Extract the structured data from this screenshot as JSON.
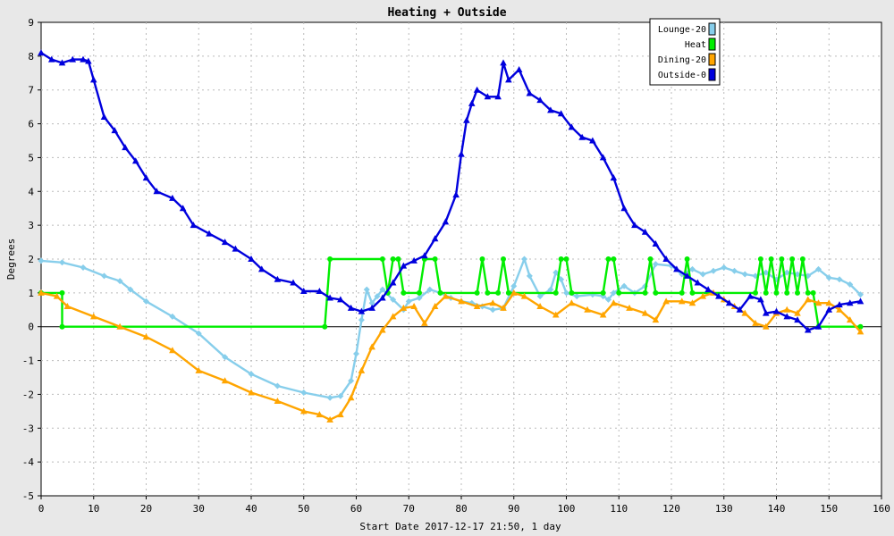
{
  "chart_data": {
    "type": "line",
    "title": "Heating + Outside",
    "xlabel": "Start Date 2017-12-17 21:50, 1 day",
    "ylabel": "Degrees",
    "xlim": [
      0,
      160
    ],
    "ylim": [
      -5,
      9
    ],
    "x_ticks": [
      0,
      10,
      20,
      30,
      40,
      50,
      60,
      70,
      80,
      90,
      100,
      110,
      120,
      130,
      140,
      150,
      160
    ],
    "y_ticks": [
      -5,
      -4,
      -3,
      -2,
      -1,
      0,
      1,
      2,
      3,
      4,
      5,
      6,
      7,
      8,
      9
    ],
    "grid": true,
    "legend_position": "top-right",
    "series": [
      {
        "name": "Lounge-20",
        "color": "#87ceeb",
        "marker": "diamond",
        "points": [
          [
            0,
            1.95
          ],
          [
            4,
            1.9
          ],
          [
            8,
            1.75
          ],
          [
            12,
            1.5
          ],
          [
            15,
            1.35
          ],
          [
            17,
            1.1
          ],
          [
            20,
            0.75
          ],
          [
            25,
            0.3
          ],
          [
            30,
            -0.2
          ],
          [
            35,
            -0.9
          ],
          [
            40,
            -1.4
          ],
          [
            45,
            -1.75
          ],
          [
            50,
            -1.95
          ],
          [
            55,
            -2.1
          ],
          [
            57,
            -2.05
          ],
          [
            59,
            -1.6
          ],
          [
            60,
            -0.8
          ],
          [
            61,
            0.2
          ],
          [
            62,
            1.1
          ],
          [
            63,
            0.7
          ],
          [
            64,
            0.9
          ],
          [
            65,
            1.1
          ],
          [
            67,
            0.8
          ],
          [
            69,
            0.5
          ],
          [
            70,
            0.75
          ],
          [
            72,
            0.85
          ],
          [
            74,
            1.1
          ],
          [
            76,
            1.0
          ],
          [
            78,
            0.85
          ],
          [
            80,
            0.75
          ],
          [
            82,
            0.7
          ],
          [
            84,
            0.6
          ],
          [
            86,
            0.5
          ],
          [
            88,
            0.55
          ],
          [
            90,
            1.2
          ],
          [
            92,
            2.0
          ],
          [
            93,
            1.5
          ],
          [
            95,
            0.9
          ],
          [
            97,
            1.1
          ],
          [
            98,
            1.6
          ],
          [
            99,
            1.4
          ],
          [
            100,
            1.0
          ],
          [
            102,
            0.9
          ],
          [
            105,
            0.95
          ],
          [
            107,
            0.9
          ],
          [
            108,
            0.8
          ],
          [
            109,
            1.0
          ],
          [
            111,
            1.2
          ],
          [
            113,
            1.0
          ],
          [
            115,
            1.2
          ],
          [
            117,
            1.85
          ],
          [
            120,
            1.8
          ],
          [
            122,
            1.55
          ],
          [
            124,
            1.7
          ],
          [
            126,
            1.55
          ],
          [
            128,
            1.65
          ],
          [
            130,
            1.75
          ],
          [
            132,
            1.65
          ],
          [
            134,
            1.55
          ],
          [
            136,
            1.5
          ],
          [
            138,
            1.6
          ],
          [
            140,
            1.4
          ],
          [
            142,
            1.6
          ],
          [
            144,
            1.55
          ],
          [
            146,
            1.5
          ],
          [
            148,
            1.7
          ],
          [
            150,
            1.45
          ],
          [
            152,
            1.4
          ],
          [
            154,
            1.25
          ],
          [
            156,
            0.95
          ]
        ]
      },
      {
        "name": "Heat",
        "color": "#00ee00",
        "marker": "circle",
        "points": [
          [
            0,
            1
          ],
          [
            4,
            1
          ],
          [
            4,
            0
          ],
          [
            54,
            0
          ],
          [
            55,
            2
          ],
          [
            65,
            2
          ],
          [
            66,
            1
          ],
          [
            67,
            2
          ],
          [
            68,
            2
          ],
          [
            69,
            1
          ],
          [
            72,
            1
          ],
          [
            73,
            2
          ],
          [
            75,
            2
          ],
          [
            76,
            1
          ],
          [
            83,
            1
          ],
          [
            84,
            2
          ],
          [
            85,
            1
          ],
          [
            87,
            1
          ],
          [
            88,
            2
          ],
          [
            89,
            1
          ],
          [
            98,
            1
          ],
          [
            99,
            2
          ],
          [
            100,
            2
          ],
          [
            101,
            1
          ],
          [
            107,
            1
          ],
          [
            108,
            2
          ],
          [
            109,
            2
          ],
          [
            110,
            1
          ],
          [
            115,
            1
          ],
          [
            116,
            2
          ],
          [
            117,
            1
          ],
          [
            122,
            1
          ],
          [
            123,
            2
          ],
          [
            124,
            1
          ],
          [
            136,
            1
          ],
          [
            137,
            2
          ],
          [
            138,
            1
          ],
          [
            139,
            2
          ],
          [
            140,
            1
          ],
          [
            141,
            2
          ],
          [
            142,
            1
          ],
          [
            143,
            2
          ],
          [
            144,
            1
          ],
          [
            145,
            2
          ],
          [
            146,
            1
          ],
          [
            147,
            1
          ],
          [
            148,
            0
          ],
          [
            156,
            0
          ]
        ]
      },
      {
        "name": "Dining-20",
        "color": "#ffa500",
        "marker": "triangle",
        "points": [
          [
            0,
            1
          ],
          [
            3,
            0.9
          ],
          [
            5,
            0.6
          ],
          [
            10,
            0.3
          ],
          [
            15,
            0.0
          ],
          [
            20,
            -0.3
          ],
          [
            25,
            -0.7
          ],
          [
            30,
            -1.3
          ],
          [
            35,
            -1.6
          ],
          [
            40,
            -1.95
          ],
          [
            45,
            -2.2
          ],
          [
            50,
            -2.5
          ],
          [
            53,
            -2.6
          ],
          [
            55,
            -2.75
          ],
          [
            57,
            -2.6
          ],
          [
            59,
            -2.1
          ],
          [
            61,
            -1.3
          ],
          [
            63,
            -0.6
          ],
          [
            65,
            -0.1
          ],
          [
            67,
            0.3
          ],
          [
            69,
            0.55
          ],
          [
            71,
            0.6
          ],
          [
            73,
            0.1
          ],
          [
            75,
            0.6
          ],
          [
            77,
            0.9
          ],
          [
            80,
            0.75
          ],
          [
            83,
            0.6
          ],
          [
            86,
            0.7
          ],
          [
            88,
            0.55
          ],
          [
            90,
            1.0
          ],
          [
            92,
            0.9
          ],
          [
            95,
            0.6
          ],
          [
            98,
            0.35
          ],
          [
            101,
            0.7
          ],
          [
            104,
            0.5
          ],
          [
            107,
            0.35
          ],
          [
            109,
            0.7
          ],
          [
            112,
            0.55
          ],
          [
            115,
            0.4
          ],
          [
            117,
            0.2
          ],
          [
            119,
            0.75
          ],
          [
            122,
            0.75
          ],
          [
            124,
            0.7
          ],
          [
            126,
            0.9
          ],
          [
            128,
            1.0
          ],
          [
            130,
            0.8
          ],
          [
            132,
            0.6
          ],
          [
            134,
            0.4
          ],
          [
            136,
            0.1
          ],
          [
            138,
            0.0
          ],
          [
            140,
            0.4
          ],
          [
            142,
            0.5
          ],
          [
            144,
            0.4
          ],
          [
            146,
            0.8
          ],
          [
            148,
            0.7
          ],
          [
            150,
            0.7
          ],
          [
            152,
            0.5
          ],
          [
            154,
            0.2
          ],
          [
            156,
            -0.15
          ]
        ]
      },
      {
        "name": "Outside-0",
        "color": "#0000dd",
        "marker": "triangle",
        "points": [
          [
            0,
            8.1
          ],
          [
            2,
            7.9
          ],
          [
            4,
            7.8
          ],
          [
            6,
            7.9
          ],
          [
            8,
            7.9
          ],
          [
            9,
            7.85
          ],
          [
            10,
            7.3
          ],
          [
            12,
            6.2
          ],
          [
            14,
            5.8
          ],
          [
            16,
            5.3
          ],
          [
            18,
            4.9
          ],
          [
            20,
            4.4
          ],
          [
            22,
            4.0
          ],
          [
            25,
            3.8
          ],
          [
            27,
            3.5
          ],
          [
            29,
            3.0
          ],
          [
            32,
            2.75
          ],
          [
            35,
            2.5
          ],
          [
            37,
            2.3
          ],
          [
            40,
            2.0
          ],
          [
            42,
            1.7
          ],
          [
            45,
            1.4
          ],
          [
            48,
            1.3
          ],
          [
            50,
            1.05
          ],
          [
            53,
            1.05
          ],
          [
            55,
            0.85
          ],
          [
            57,
            0.8
          ],
          [
            59,
            0.55
          ],
          [
            61,
            0.45
          ],
          [
            63,
            0.55
          ],
          [
            65,
            0.85
          ],
          [
            67,
            1.3
          ],
          [
            69,
            1.8
          ],
          [
            71,
            1.95
          ],
          [
            73,
            2.1
          ],
          [
            75,
            2.6
          ],
          [
            77,
            3.1
          ],
          [
            79,
            3.9
          ],
          [
            80,
            5.1
          ],
          [
            81,
            6.1
          ],
          [
            82,
            6.6
          ],
          [
            83,
            7.0
          ],
          [
            85,
            6.8
          ],
          [
            87,
            6.8
          ],
          [
            88,
            7.8
          ],
          [
            89,
            7.3
          ],
          [
            91,
            7.6
          ],
          [
            93,
            6.9
          ],
          [
            95,
            6.7
          ],
          [
            97,
            6.4
          ],
          [
            99,
            6.3
          ],
          [
            101,
            5.9
          ],
          [
            103,
            5.6
          ],
          [
            105,
            5.5
          ],
          [
            107,
            5.0
          ],
          [
            109,
            4.4
          ],
          [
            111,
            3.5
          ],
          [
            113,
            3.0
          ],
          [
            115,
            2.8
          ],
          [
            117,
            2.45
          ],
          [
            119,
            2.0
          ],
          [
            121,
            1.7
          ],
          [
            123,
            1.5
          ],
          [
            125,
            1.3
          ],
          [
            127,
            1.1
          ],
          [
            129,
            0.9
          ],
          [
            131,
            0.7
          ],
          [
            133,
            0.5
          ],
          [
            135,
            0.9
          ],
          [
            137,
            0.8
          ],
          [
            138,
            0.4
          ],
          [
            140,
            0.45
          ],
          [
            142,
            0.3
          ],
          [
            144,
            0.2
          ],
          [
            146,
            -0.1
          ],
          [
            148,
            0.0
          ],
          [
            150,
            0.5
          ],
          [
            152,
            0.65
          ],
          [
            154,
            0.7
          ],
          [
            156,
            0.75
          ]
        ]
      }
    ]
  }
}
